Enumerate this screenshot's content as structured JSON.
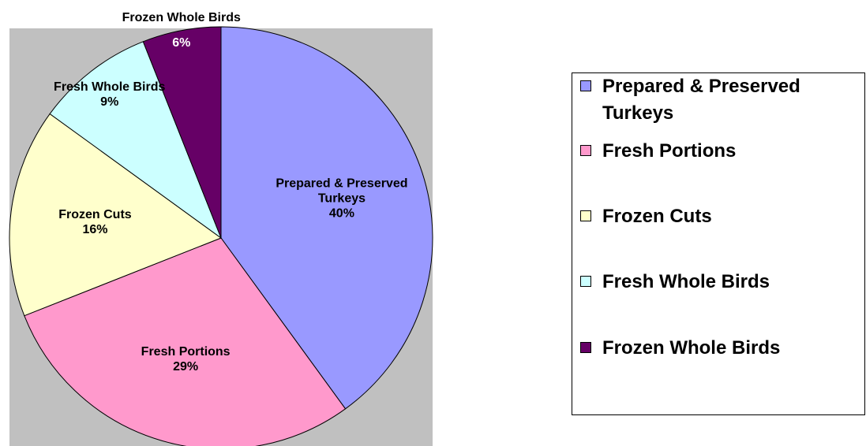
{
  "chart_data": {
    "type": "pie",
    "categories": [
      "Prepared & Preserved Turkeys",
      "Fresh Portions",
      "Frozen Cuts",
      "Fresh Whole Birds",
      "Frozen Whole Birds"
    ],
    "values": [
      40,
      29,
      16,
      9,
      6
    ],
    "value_labels": [
      "40%",
      "29%",
      "16%",
      "9%",
      "6%"
    ],
    "colors": [
      "#9999ff",
      "#ff99cc",
      "#ffffcc",
      "#ccffff",
      "#660066"
    ],
    "legend": "right"
  }
}
